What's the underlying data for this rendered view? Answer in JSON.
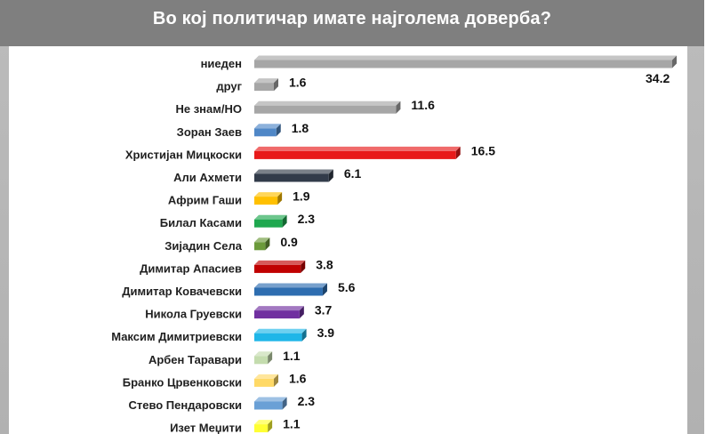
{
  "chart_data": {
    "type": "bar",
    "orientation": "horizontal",
    "title": "Во кој политичар имате најголема доверба?",
    "categories": [
      "ниеден",
      "друг",
      "Не знам/НО",
      "Зоран Заев",
      "Христијан Мицкоски",
      "Али Ахмети",
      "Африм Гаши",
      "Билал Касами",
      "Зијадин Села",
      "Димитар Апасиев",
      "Димитар Ковачевски",
      "Никола Груевски",
      "Максим Димитриевски",
      "Арбен Таравари",
      "Бранко Црвенковски",
      "Стево Пендаровски",
      "Изет Меџити"
    ],
    "values": [
      34.2,
      1.6,
      11.6,
      1.8,
      16.5,
      6.1,
      1.9,
      2.3,
      0.9,
      3.8,
      5.6,
      3.7,
      3.9,
      1.1,
      1.6,
      2.3,
      1.1
    ],
    "value_labels": [
      "34.2",
      "1.6",
      "11.6",
      "1.8",
      "16.5",
      "6.1",
      "1.9",
      "2.3",
      "0.9",
      "3.8",
      "5.6",
      "3.7",
      "3.9",
      "1.1",
      "1.6",
      "2.3",
      "1.1"
    ],
    "colors": [
      "#a6a6a6",
      "#a6a6a6",
      "#a6a6a6",
      "#4f87c7",
      "#e81a1a",
      "#323b4a",
      "#ffc000",
      "#1fa84f",
      "#6b9a3a",
      "#c00000",
      "#2e6db0",
      "#7030a0",
      "#1fb6e8",
      "#c4dcae",
      "#ffd966",
      "#6aa0d6",
      "#ffff33"
    ],
    "xlim": [
      0,
      34.2
    ],
    "grid": false,
    "legend": "none"
  }
}
